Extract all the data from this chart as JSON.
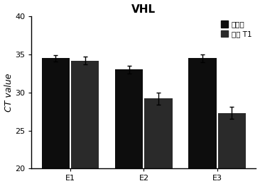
{
  "title": "VHL",
  "ylabel": "CT value",
  "categories": [
    "E1",
    "E2",
    "E3"
  ],
  "series1_label": "肇囊肿",
  "series2_label": "肇癌 T1",
  "series1_values": [
    34.5,
    33.0,
    34.5
  ],
  "series2_values": [
    34.2,
    29.2,
    27.3
  ],
  "series1_errors": [
    0.4,
    0.5,
    0.5
  ],
  "series2_errors": [
    0.5,
    0.8,
    0.8
  ],
  "bar_color1": "#0d0d0d",
  "bar_color2": "#2a2a2a",
  "ylim": [
    20,
    40
  ],
  "yticks": [
    20,
    25,
    30,
    35,
    40
  ],
  "background_color": "#ffffff",
  "bar_width": 0.38,
  "title_fontsize": 11,
  "axis_label_fontsize": 9,
  "tick_fontsize": 8,
  "legend_fontsize": 7.5
}
